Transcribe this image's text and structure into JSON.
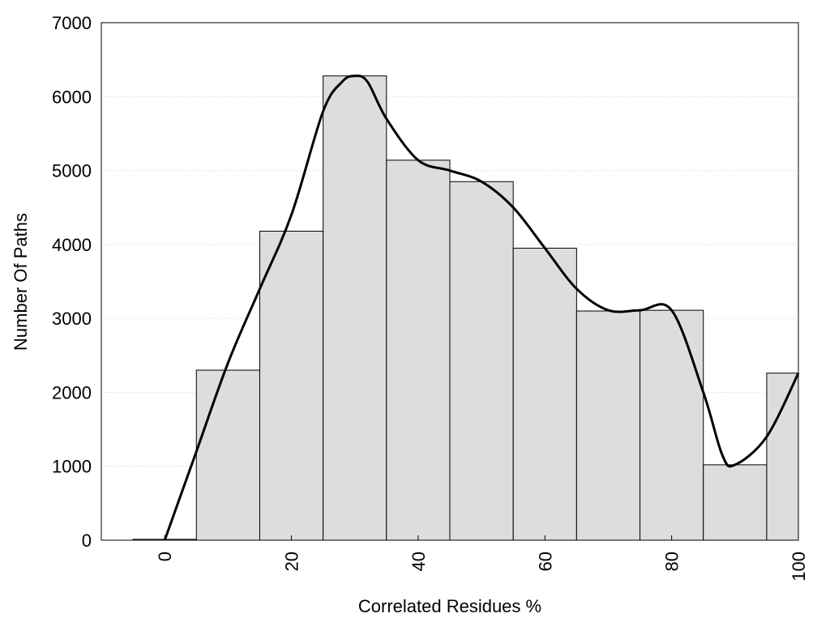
{
  "chart_data": {
    "type": "bar",
    "title": "",
    "xlabel": "Correlated Residues %",
    "ylabel": "Number Of Paths",
    "xlim": [
      -10,
      100
    ],
    "ylim": [
      0,
      7000
    ],
    "bin_width": 10,
    "bin_centers": [
      0,
      10,
      20,
      30,
      40,
      50,
      60,
      70,
      80,
      90,
      100
    ],
    "values": [
      12,
      2300,
      4180,
      6280,
      5140,
      4850,
      3950,
      3100,
      3110,
      1020,
      2260
    ],
    "x_ticks": [
      0,
      20,
      40,
      60,
      80,
      100
    ],
    "y_ticks": [
      0,
      1000,
      2000,
      3000,
      4000,
      5000,
      6000,
      7000
    ],
    "grid": "horizontal-dotted",
    "bar_color": "#dddddd",
    "bar_edge_color": "#000000",
    "smooth_curve": {
      "type": "line",
      "x": [
        0,
        5,
        10,
        15,
        20,
        25,
        28,
        30,
        32,
        35,
        40,
        45,
        50,
        55,
        60,
        65,
        70,
        75,
        80,
        85,
        88,
        90,
        95,
        100
      ],
      "y": [
        0,
        1200,
        2400,
        3400,
        4400,
        5800,
        6200,
        6280,
        6200,
        5700,
        5140,
        5000,
        4850,
        4500,
        3950,
        3400,
        3110,
        3110,
        3110,
        2000,
        1150,
        1020,
        1400,
        2260
      ],
      "color": "#000000"
    }
  }
}
